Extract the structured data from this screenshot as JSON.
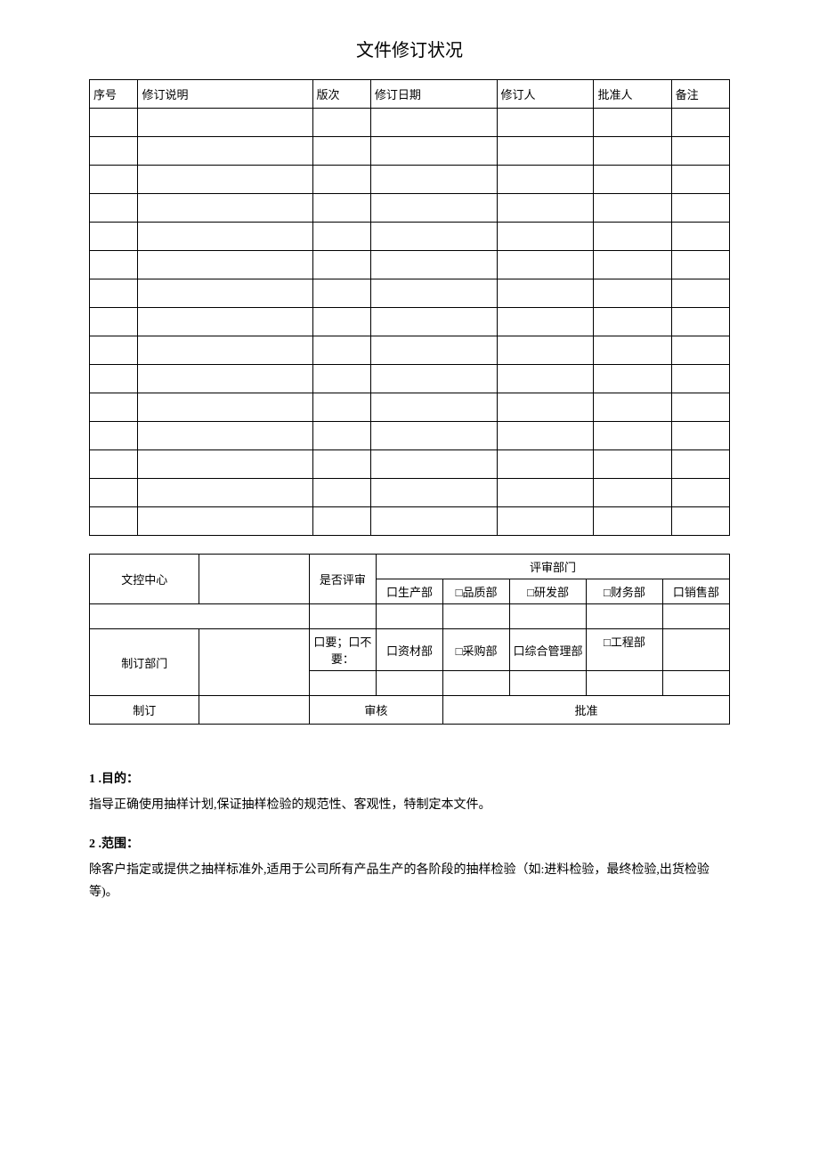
{
  "page_title": "文件修订状况",
  "revision_table": {
    "headers": [
      "序号",
      "修订说明",
      "版次",
      "修订日期",
      "修订人",
      "批准人",
      "备注"
    ],
    "column_widths": [
      "50px",
      "180px",
      "60px",
      "130px",
      "100px",
      "80px",
      "60px"
    ],
    "empty_row_count": 15
  },
  "review_table": {
    "row1_label": "文控中心",
    "review_dept_header": "评审部门",
    "is_review": "是否评审",
    "depts_row1": [
      "口生产部",
      "□品质部",
      "□研发部",
      "□财务部",
      "口销售部"
    ],
    "row2_label": "制订部门",
    "require_text": "口要；口不要：",
    "depts_row2": [
      "口资材部",
      "□采购部",
      "口综合管理部",
      "□工程部",
      ""
    ],
    "row3_labels": [
      "制订",
      "审核",
      "批准"
    ]
  },
  "sections": [
    {
      "number": "1 .",
      "title": "目的：",
      "text": "指导正确使用抽样计划,保证抽样检验的规范性、客观性，特制定本文件。"
    },
    {
      "number": "2 .",
      "title": "范围：",
      "text": "除客户指定或提供之抽样标准外,适用于公司所有产品生产的各阶段的抽样检验（如:进料检验，最终检验,出货检验等)。"
    }
  ],
  "colors": {
    "text": "#000000",
    "background": "#ffffff",
    "border": "#000000"
  }
}
